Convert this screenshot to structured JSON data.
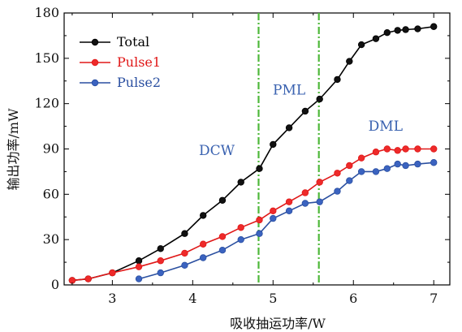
{
  "chart_data": {
    "type": "line",
    "title": "",
    "xlabel": "吸收抽运功率/W",
    "ylabel": "输出功率/mW",
    "xlim": [
      2.4,
      7.2
    ],
    "ylim": [
      0,
      180
    ],
    "xticks": [
      "3",
      "4",
      "5",
      "6",
      "7"
    ],
    "yticks": [
      "0",
      "30",
      "60",
      "90",
      "120",
      "150",
      "180"
    ],
    "grid": false,
    "legend_position": "top-left",
    "series": [
      {
        "name": "Total",
        "color": "#000000",
        "fill": "#111111",
        "points": [
          [
            2.5,
            3
          ],
          [
            2.7,
            4
          ],
          [
            3.0,
            8
          ],
          [
            3.33,
            16
          ],
          [
            3.6,
            24
          ],
          [
            3.9,
            34
          ],
          [
            4.13,
            46
          ],
          [
            4.37,
            56
          ],
          [
            4.6,
            68
          ],
          [
            4.83,
            77
          ],
          [
            5.0,
            93
          ],
          [
            5.2,
            104
          ],
          [
            5.4,
            115
          ],
          [
            5.58,
            123
          ],
          [
            5.8,
            136
          ],
          [
            5.95,
            148
          ],
          [
            6.1,
            159
          ],
          [
            6.28,
            163
          ],
          [
            6.42,
            167
          ],
          [
            6.55,
            168.5
          ],
          [
            6.65,
            169
          ],
          [
            6.8,
            169.5
          ],
          [
            7.0,
            171
          ]
        ]
      },
      {
        "name": "Pulse1",
        "color": "#e01818",
        "fill": "#ee2a2a",
        "points": [
          [
            2.5,
            3
          ],
          [
            2.7,
            4
          ],
          [
            3.0,
            8
          ],
          [
            3.33,
            12
          ],
          [
            3.6,
            16
          ],
          [
            3.9,
            21
          ],
          [
            4.13,
            27
          ],
          [
            4.37,
            32
          ],
          [
            4.6,
            38
          ],
          [
            4.83,
            43
          ],
          [
            5.0,
            49
          ],
          [
            5.2,
            55
          ],
          [
            5.4,
            61
          ],
          [
            5.58,
            68
          ],
          [
            5.8,
            74
          ],
          [
            5.95,
            79
          ],
          [
            6.1,
            84
          ],
          [
            6.28,
            88
          ],
          [
            6.42,
            90
          ],
          [
            6.55,
            89
          ],
          [
            6.65,
            90
          ],
          [
            6.8,
            90
          ],
          [
            7.0,
            90
          ]
        ]
      },
      {
        "name": "Pulse2",
        "color": "#2a4fa0",
        "fill": "#3b63c0",
        "points": [
          [
            3.33,
            4
          ],
          [
            3.6,
            8
          ],
          [
            3.9,
            13
          ],
          [
            4.13,
            18
          ],
          [
            4.37,
            23
          ],
          [
            4.6,
            30
          ],
          [
            4.83,
            34
          ],
          [
            5.0,
            44
          ],
          [
            5.2,
            49
          ],
          [
            5.4,
            54
          ],
          [
            5.58,
            55
          ],
          [
            5.8,
            62
          ],
          [
            5.95,
            69
          ],
          [
            6.1,
            75
          ],
          [
            6.28,
            75
          ],
          [
            6.42,
            77
          ],
          [
            6.55,
            80
          ],
          [
            6.65,
            79
          ],
          [
            6.8,
            80
          ],
          [
            7.0,
            81
          ]
        ]
      }
    ],
    "vertical_lines": [
      {
        "x": 4.82,
        "color": "#4eb83a",
        "style": "dash-dot"
      },
      {
        "x": 5.57,
        "color": "#4eb83a",
        "style": "dash-dot"
      }
    ],
    "annotations": [
      {
        "text": "DCW",
        "x": 4.3,
        "y": 86
      },
      {
        "text": "PML",
        "x": 5.2,
        "y": 126
      },
      {
        "text": "DML",
        "x": 6.4,
        "y": 102
      }
    ]
  }
}
